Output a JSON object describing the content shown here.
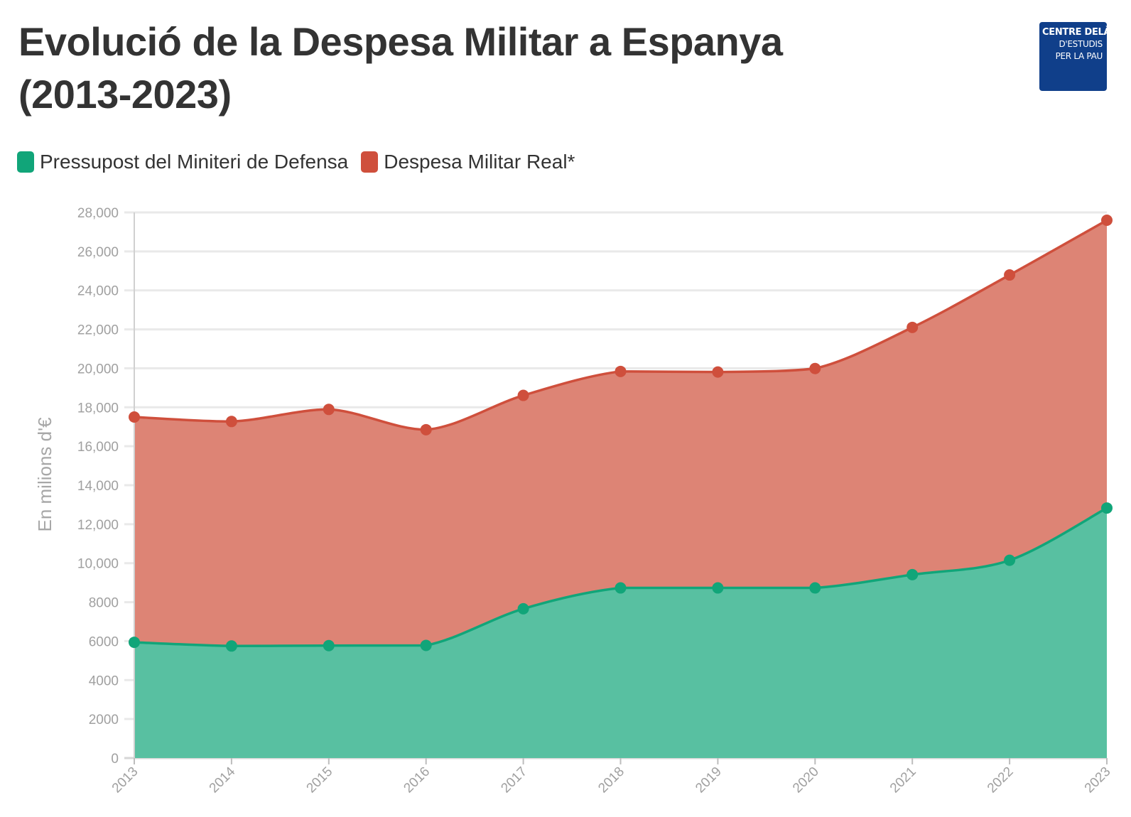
{
  "header": {
    "title_line1": "Evolució de la Despesa Militar a Espanya",
    "title_line2": "(2013-2023)"
  },
  "logo": {
    "line1": "CENTRE DELÀS",
    "line2": "D'ESTUDIS",
    "line3": "PER LA PAU",
    "color": "#103f8a"
  },
  "chart_data": {
    "type": "area",
    "title": "Evolució de la Despesa Militar a Espanya (2013-2023)",
    "ylabel": "En milions d'€",
    "xlabel": "",
    "ylim": [
      0,
      28000
    ],
    "grid": true,
    "legend_position": "top-left",
    "x": [
      "2013",
      "2014",
      "2015",
      "2016",
      "2017",
      "2018",
      "2019",
      "2020",
      "2021",
      "2022",
      "2023"
    ],
    "y_ticks": [
      "0",
      "2000",
      "4000",
      "6000",
      "8000",
      "10,000",
      "12,000",
      "14,000",
      "16,000",
      "18,000",
      "20,000",
      "22,000",
      "24,000",
      "26,000",
      "28,000"
    ],
    "series": [
      {
        "name": "Pressupost del Miniteri de Defensa",
        "color": "#11a579",
        "fill": "#58c0a1",
        "values": [
          5940,
          5750,
          5770,
          5780,
          7660,
          8730,
          8730,
          8730,
          9410,
          10150,
          12830
        ]
      },
      {
        "name": "Despesa Militar Real*",
        "color": "#cf4f3c",
        "fill": "#dd8475",
        "values": [
          17500,
          17270,
          17890,
          16850,
          18610,
          19840,
          19810,
          19990,
          22100,
          24790,
          27600
        ]
      }
    ]
  }
}
